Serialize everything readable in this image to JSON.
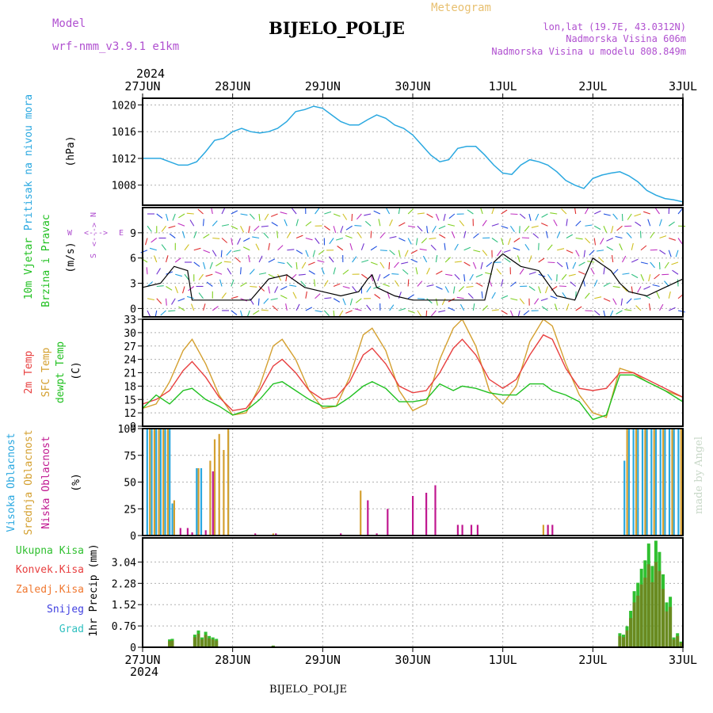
{
  "header": {
    "model_label": "Model",
    "model_name": "wrf-nmm_v3.9.1 e1km",
    "station": "BIJELO_POLJE",
    "product": "Meteogram",
    "lonlat": "lon,lat (19.7E, 43.0312N)",
    "elevation": "Nadmorska Visina 606m",
    "model_elevation": "Nadmorska Visina u modelu 808.849m",
    "watermark": "made by Angel",
    "footer_station": "BIJELO_POLJE",
    "year_top": "2024",
    "year_bottom": "2024"
  },
  "colors": {
    "pressure": "#2aa8e0",
    "temp2m": "#e84040",
    "sfc": "#d4a030",
    "dewpt": "#20c020",
    "high_cloud": "#2aa8e0",
    "mid_cloud": "#d4a030",
    "low_cloud": "#c01890",
    "total_precip": "#30c030",
    "conv_precip": "#e84040",
    "frozen_precip": "#f07830",
    "snow": "#4040e0",
    "hail": "#30c0c0",
    "precip_bar": "#6a8a20",
    "grid": "#b0b0b0",
    "purple": "#b050d0"
  },
  "chart_data": [
    {
      "type": "line",
      "panel": "pressure",
      "ylabel": "Pritisak na nivou mora",
      "unit": "(hPa)",
      "x_ticks": [
        "27JUN",
        "28JUN",
        "29JUN",
        "30JUN",
        "1JUL",
        "2JUL",
        "3JUL"
      ],
      "ylim": [
        1005,
        1021
      ],
      "yticks": [
        1008,
        1012,
        1016,
        1020
      ],
      "grid": true,
      "series": [
        {
          "x": [
            0,
            0.1,
            0.2,
            0.3,
            0.4,
            0.5,
            0.6,
            0.7,
            0.8,
            0.9,
            1.0,
            1.1,
            1.2,
            1.3,
            1.4,
            1.5,
            1.6,
            1.7,
            1.8,
            1.9,
            2.0,
            2.1,
            2.2,
            2.3,
            2.4,
            2.5,
            2.6,
            2.7,
            2.8,
            2.9,
            3.0,
            3.1,
            3.2,
            3.3,
            3.4,
            3.5,
            3.6,
            3.7,
            3.8,
            3.9,
            4.0,
            4.1,
            4.2,
            4.3,
            4.4,
            4.5,
            4.6,
            4.7,
            4.8,
            4.9,
            5.0,
            5.1,
            5.2,
            5.3,
            5.4,
            5.5,
            5.6,
            5.7,
            5.8,
            5.9,
            6.0
          ],
          "values": [
            1012,
            1012,
            1012,
            1011.5,
            1011,
            1011,
            1011.5,
            1013,
            1014.7,
            1015,
            1016,
            1016.5,
            1016,
            1015.8,
            1016,
            1016.5,
            1017.5,
            1019,
            1019.3,
            1019.8,
            1019.5,
            1018.5,
            1017.5,
            1017,
            1017,
            1017.8,
            1018.5,
            1018,
            1017,
            1016.5,
            1015.5,
            1014,
            1012.5,
            1011.5,
            1011.8,
            1013.5,
            1013.8,
            1013.8,
            1012.5,
            1011,
            1009.8,
            1009.6,
            1011,
            1011.8,
            1011.5,
            1011,
            1010,
            1008.7,
            1008,
            1007.5,
            1009,
            1009.5,
            1009.8,
            1010,
            1009.4,
            1008.5,
            1007.2,
            1006.5,
            1006,
            1005.8,
            1005.5
          ]
        }
      ]
    },
    {
      "type": "line",
      "panel": "wind",
      "ylabel": "10m Vjetar Brzina i Pravac",
      "unit": "(m/s)",
      "compass": [
        "N",
        "E",
        "W",
        "S"
      ],
      "ylim": [
        -1,
        12
      ],
      "yticks": [
        0,
        3,
        6,
        9
      ],
      "grid": true,
      "series": [
        {
          "name": "wind speed",
          "x": [
            0,
            0.2,
            0.35,
            0.5,
            0.55,
            0.6,
            0.8,
            1.0,
            1.2,
            1.4,
            1.6,
            1.8,
            2.0,
            2.2,
            2.4,
            2.5,
            2.55,
            2.6,
            2.8,
            3.0,
            3.2,
            3.4,
            3.6,
            3.8,
            3.9,
            4.0,
            4.2,
            4.4,
            4.6,
            4.8,
            5.0,
            5.2,
            5.3,
            5.4,
            5.6,
            5.8,
            6.0
          ],
          "values": [
            2.5,
            3.0,
            5.0,
            4.5,
            1.0,
            1.0,
            1.0,
            1.0,
            1.0,
            3.5,
            4.0,
            2.5,
            2.0,
            1.5,
            2.0,
            3.5,
            4.0,
            2.5,
            1.5,
            1.0,
            1.0,
            1.0,
            1.0,
            1.0,
            5.5,
            6.5,
            5.0,
            4.5,
            1.5,
            1.0,
            6.0,
            4.5,
            3.0,
            2.0,
            1.5,
            2.5,
            3.5
          ]
        }
      ]
    },
    {
      "type": "line",
      "panel": "temperature",
      "ylabel": "2m Temp / SFC Temp / dewpt Temp",
      "unit": "(C)",
      "ylim": [
        9,
        33
      ],
      "yticks": [
        9,
        12,
        15,
        18,
        21,
        24,
        27,
        30,
        33
      ],
      "grid": true,
      "series": [
        {
          "name": "2m Temp",
          "x": [
            0,
            0.15,
            0.3,
            0.45,
            0.55,
            0.7,
            0.85,
            1.0,
            1.15,
            1.3,
            1.45,
            1.55,
            1.7,
            1.85,
            2.0,
            2.15,
            2.3,
            2.45,
            2.55,
            2.7,
            2.85,
            3.0,
            3.15,
            3.3,
            3.45,
            3.55,
            3.7,
            3.85,
            4.0,
            4.15,
            4.3,
            4.45,
            4.55,
            4.7,
            4.85,
            5.0,
            5.15,
            5.3,
            5.45,
            5.6,
            5.8,
            6.0
          ],
          "values": [
            14,
            15,
            17,
            21.5,
            23.5,
            20,
            15.5,
            12.5,
            13,
            17,
            22.5,
            24,
            21,
            17,
            15,
            15.5,
            19,
            25,
            26.5,
            23,
            18,
            16.5,
            17,
            21,
            26.5,
            28.5,
            25,
            19.5,
            17.5,
            19.5,
            25,
            29.5,
            28.5,
            22,
            17.5,
            17,
            17.5,
            21,
            21,
            19.5,
            17.5,
            15.5
          ]
        },
        {
          "name": "SFC Temp",
          "x": [
            0,
            0.15,
            0.3,
            0.45,
            0.55,
            0.7,
            0.85,
            1.0,
            1.15,
            1.3,
            1.45,
            1.55,
            1.7,
            1.85,
            2.0,
            2.15,
            2.3,
            2.45,
            2.55,
            2.7,
            2.85,
            3.0,
            3.15,
            3.3,
            3.45,
            3.55,
            3.7,
            3.85,
            4.0,
            4.15,
            4.3,
            4.45,
            4.55,
            4.7,
            4.85,
            5.0,
            5.15,
            5.3,
            5.45,
            5.6,
            5.8,
            6.0
          ],
          "values": [
            13,
            14,
            19,
            26,
            28.5,
            23,
            16,
            11.5,
            12,
            18,
            27,
            28.5,
            24,
            17,
            13,
            13.5,
            20,
            29.5,
            31,
            26,
            17,
            12.5,
            14,
            24,
            31,
            33,
            27,
            17,
            14,
            18,
            28,
            33,
            31.5,
            23,
            16,
            12,
            11,
            22,
            21,
            19,
            17,
            15.5
          ]
        },
        {
          "name": "dewpt Temp",
          "x": [
            0,
            0.15,
            0.3,
            0.45,
            0.55,
            0.7,
            0.85,
            1.0,
            1.15,
            1.3,
            1.45,
            1.55,
            1.7,
            1.85,
            2.0,
            2.15,
            2.3,
            2.45,
            2.55,
            2.7,
            2.85,
            3.0,
            3.15,
            3.3,
            3.45,
            3.55,
            3.7,
            3.85,
            4.0,
            4.15,
            4.3,
            4.45,
            4.55,
            4.7,
            4.85,
            5.0,
            5.15,
            5.3,
            5.45,
            5.6,
            5.8,
            6.0
          ],
          "values": [
            13,
            16,
            14,
            17,
            17.5,
            15,
            13.5,
            11.5,
            12.5,
            15,
            18.5,
            19,
            17,
            15,
            13.5,
            13.5,
            15.5,
            18,
            19,
            17.5,
            14.5,
            14.5,
            15,
            18.5,
            17,
            18,
            17.5,
            16.5,
            16,
            16,
            18.5,
            18.5,
            17,
            16,
            14.5,
            10.5,
            11.5,
            20.5,
            20.5,
            19,
            17,
            14.5
          ]
        }
      ]
    },
    {
      "type": "bar",
      "panel": "clouds",
      "ylabel": "Visoka Oblacnost / Srednja Oblacnost / Niska Oblacnost",
      "unit": "(%)",
      "ylim": [
        0,
        100
      ],
      "yticks": [
        0,
        25,
        50,
        75,
        100
      ],
      "grid": true,
      "series": [
        {
          "name": "Visoka Oblacnost",
          "x": [
            0.05,
            0.1,
            0.15,
            0.2,
            0.25,
            0.3,
            0.33,
            0.6,
            0.65,
            0.8,
            0.95,
            5.35,
            5.4,
            5.45,
            5.5,
            5.55,
            5.6,
            5.65,
            5.7,
            5.75,
            5.8,
            5.85,
            5.9,
            5.95,
            6.0
          ],
          "values": [
            100,
            100,
            100,
            100,
            100,
            100,
            30,
            63,
            63,
            60,
            100,
            70,
            100,
            100,
            100,
            100,
            100,
            100,
            100,
            100,
            100,
            100,
            100,
            100,
            100
          ]
        },
        {
          "name": "Srednja Oblacnost",
          "x": [
            0.08,
            0.13,
            0.18,
            0.23,
            0.28,
            0.35,
            0.62,
            0.75,
            0.8,
            0.85,
            0.9,
            0.95,
            1.45,
            2.42,
            4.45,
            4.5,
            5.38,
            5.48,
            5.58,
            5.68,
            5.78,
            5.88,
            5.98
          ],
          "values": [
            100,
            100,
            100,
            100,
            100,
            33,
            63,
            70,
            90,
            95,
            80,
            100,
            2,
            42,
            10,
            10,
            100,
            100,
            100,
            100,
            100,
            100,
            100
          ]
        },
        {
          "name": "Niska Oblacnost",
          "x": [
            0.42,
            0.5,
            0.55,
            0.7,
            0.78,
            1.25,
            1.48,
            2.2,
            2.5,
            2.6,
            2.72,
            3.0,
            3.15,
            3.25,
            3.5,
            3.55,
            3.65,
            3.72,
            4.5,
            4.55
          ],
          "values": [
            7,
            7,
            3,
            5,
            60,
            2,
            2,
            2,
            33,
            2,
            25,
            37,
            40,
            47,
            10,
            10,
            10,
            10,
            10,
            10
          ]
        }
      ]
    },
    {
      "type": "bar",
      "panel": "precipitation",
      "ylabel": "1hr Precip",
      "unit": "(mm)",
      "legend": [
        "Ukupna Kisa",
        "Konvek.Kisa",
        "Zaledj.Kisa",
        "Snijeg",
        "Grad"
      ],
      "ylim": [
        0,
        3.9
      ],
      "yticks": [
        0,
        0.76,
        1.52,
        2.28,
        3.04
      ],
      "grid": true,
      "series": [
        {
          "name": "Ukupna Kisa",
          "x": [
            0.3,
            0.33,
            0.58,
            0.62,
            0.66,
            0.7,
            0.74,
            0.78,
            0.82,
            1.45,
            5.3,
            5.34,
            5.38,
            5.42,
            5.46,
            5.5,
            5.54,
            5.58,
            5.62,
            5.66,
            5.7,
            5.74,
            5.78,
            5.82,
            5.86,
            5.9,
            5.94,
            5.98
          ],
          "values": [
            0.28,
            0.3,
            0.45,
            0.6,
            0.35,
            0.55,
            0.4,
            0.35,
            0.3,
            0.06,
            0.5,
            0.45,
            0.75,
            1.3,
            2.0,
            2.3,
            2.8,
            3.1,
            3.7,
            2.9,
            3.8,
            3.4,
            2.6,
            1.6,
            1.8,
            0.35,
            0.5,
            0.2
          ]
        }
      ]
    }
  ]
}
